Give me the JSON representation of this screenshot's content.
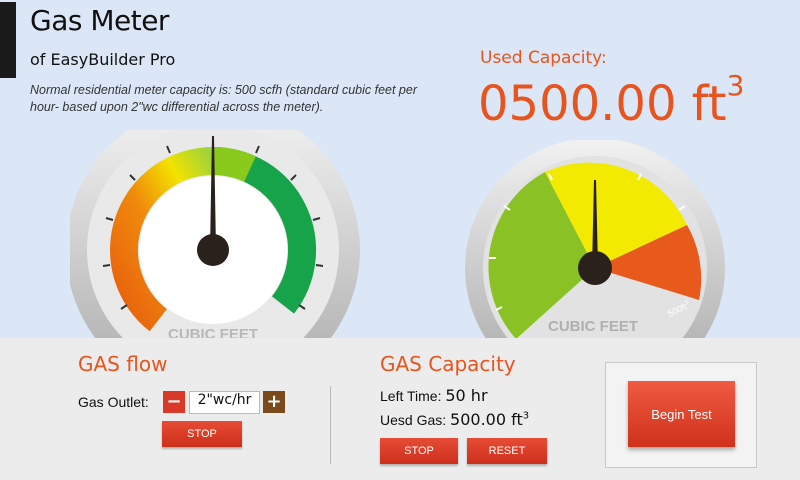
{
  "header": {
    "title": "Gas Meter",
    "subtitle": "of EasyBuilder Pro",
    "description": "Normal residential meter capacity is: 500 scfh (standard cubic feet per hour- based upon 2\"wc differential across the meter)."
  },
  "used_capacity": {
    "label": "Used Capacity:",
    "value": "0500.00 ft",
    "unit_exponent": "3"
  },
  "gauge_left": {
    "label": "CUBIC FEET",
    "needle_value": 0.5,
    "colors": {
      "orange": "#e8600e",
      "yellow": "#f2e200",
      "green": "#16a34a"
    }
  },
  "gauge_right": {
    "label": "CUBIC FEET",
    "max_label": "500ft",
    "max_label_exp": "3",
    "needle_value": 0.5,
    "colors": {
      "green": "#8ac226",
      "yellow": "#f2ea00",
      "orange": "#e85a1c"
    }
  },
  "gas_flow": {
    "title": "GAS flow",
    "outlet_label": "Gas Outlet:",
    "minus_label": "−",
    "plus_label": "+",
    "outlet_value": "2\"wc/hr",
    "stop_label": "STOP"
  },
  "gas_capacity": {
    "title": "GAS Capacity",
    "left_time_label": "Left Time:",
    "left_time_value": "50 hr",
    "used_gas_label": "Uesd Gas:",
    "used_gas_value": "500.00 ft",
    "used_gas_exp": "3",
    "stop_label": "STOP",
    "reset_label": "RESET"
  },
  "test": {
    "begin_label": "Begin Test"
  },
  "colors": {
    "accent": "#e8541e",
    "background": "#dbe7f6",
    "panel": "#ececec",
    "button_red": "#d93a28",
    "button_brown": "#7a4a1a"
  }
}
